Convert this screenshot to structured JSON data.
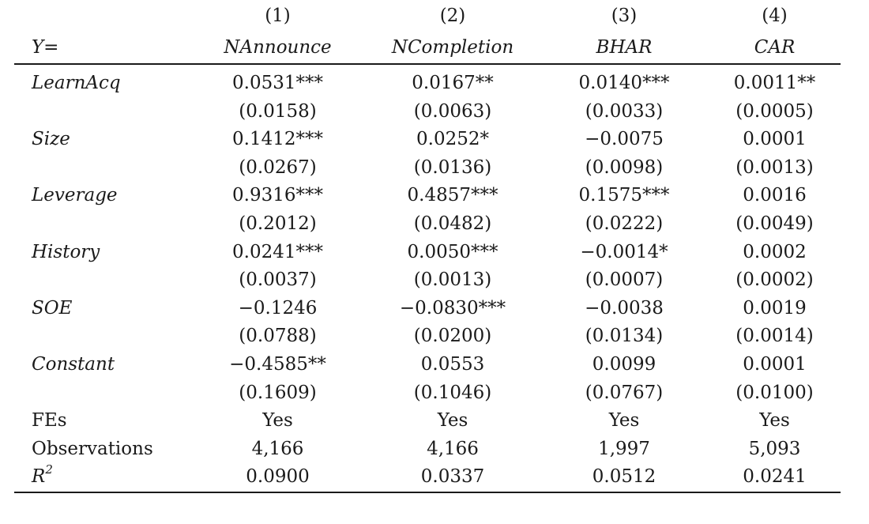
{
  "header": {
    "column_numbers": [
      "(1)",
      "(2)",
      "(3)",
      "(4)"
    ],
    "y_label": "Y=",
    "dependent_variables": [
      "NAnnounce",
      "NCompletion",
      "BHAR",
      "CAR"
    ]
  },
  "rows": [
    {
      "label": "LearnAcq",
      "italic": true,
      "coef": [
        "0.0531***",
        "0.0167**",
        "0.0140***",
        "0.0011**"
      ],
      "se": [
        "(0.0158)",
        "(0.0063)",
        "(0.0033)",
        "(0.0005)"
      ]
    },
    {
      "label": "Size",
      "italic": true,
      "coef": [
        "0.1412***",
        "0.0252*",
        "−0.0075",
        "0.0001"
      ],
      "se": [
        "(0.0267)",
        "(0.0136)",
        "(0.0098)",
        "(0.0013)"
      ]
    },
    {
      "label": "Leverage",
      "italic": true,
      "coef": [
        "0.9316***",
        "0.4857***",
        "0.1575***",
        "0.0016"
      ],
      "se": [
        "(0.2012)",
        "(0.0482)",
        "(0.0222)",
        "(0.0049)"
      ]
    },
    {
      "label": "History",
      "italic": true,
      "coef": [
        "0.0241***",
        "0.0050***",
        "−0.0014*",
        "0.0002"
      ],
      "se": [
        "(0.0037)",
        "(0.0013)",
        "(0.0007)",
        "(0.0002)"
      ]
    },
    {
      "label": "SOE",
      "italic": true,
      "coef": [
        "−0.1246",
        "−0.0830***",
        "−0.0038",
        "0.0019"
      ],
      "se": [
        "(0.0788)",
        "(0.0200)",
        "(0.0134)",
        "(0.0014)"
      ]
    },
    {
      "label": "Constant",
      "italic": true,
      "coef": [
        "−0.4585**",
        "0.0553",
        "0.0099",
        "0.0001"
      ],
      "se": [
        "(0.1609)",
        "(0.1046)",
        "(0.0767)",
        "(0.0100)"
      ]
    }
  ],
  "footer": {
    "fes": {
      "label": "FEs",
      "values": [
        "Yes",
        "Yes",
        "Yes",
        "Yes"
      ]
    },
    "observations": {
      "label": "Observations",
      "values": [
        "4,166",
        "4,166",
        "1,997",
        "5,093"
      ]
    },
    "r2": {
      "label": "R",
      "sup": "2",
      "values": [
        "0.0900",
        "0.0337",
        "0.0512",
        "0.0241"
      ]
    }
  }
}
